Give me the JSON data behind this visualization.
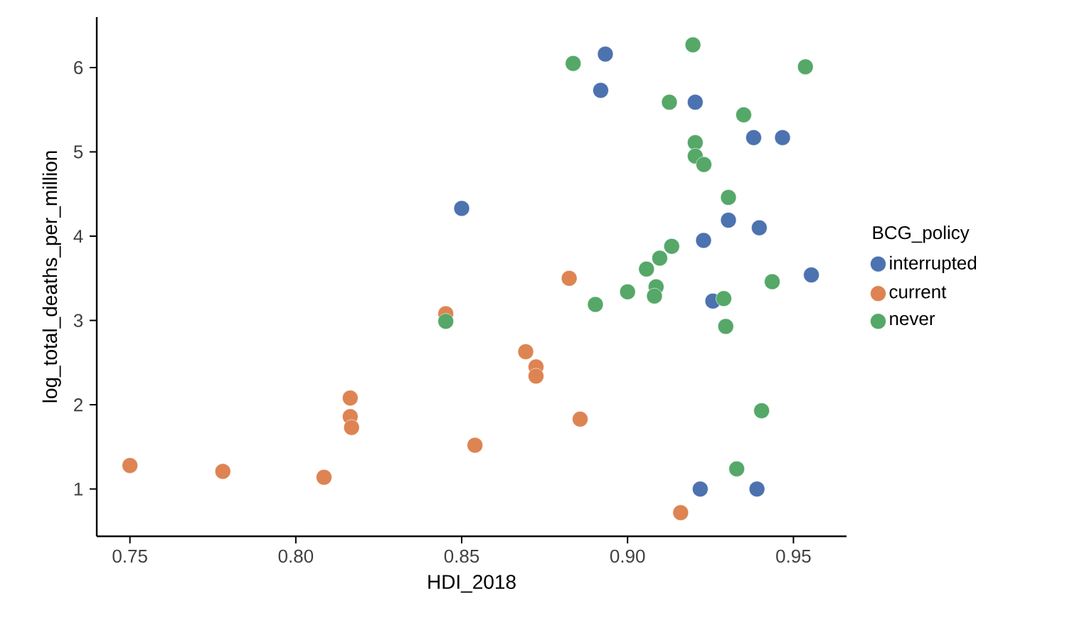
{
  "chart_data": {
    "type": "scatter",
    "xlabel": "HDI_2018",
    "ylabel": "log_total_deaths_per_million",
    "legend_title": "BCG_policy",
    "legend": "right",
    "marker": "circle",
    "xlim": [
      0.74,
      0.966
    ],
    "ylim": [
      0.44,
      6.6
    ],
    "xticks": [
      {
        "value": 0.75,
        "label": "0.75"
      },
      {
        "value": 0.8,
        "label": "0.80"
      },
      {
        "value": 0.85,
        "label": "0.85"
      },
      {
        "value": 0.9,
        "label": "0.90"
      },
      {
        "value": 0.95,
        "label": "0.95"
      }
    ],
    "yticks": [
      1,
      2,
      3,
      4,
      5,
      6
    ],
    "series": [
      {
        "name": "interrupted",
        "color": "#4c72b0",
        "x": [
          0.85,
          0.8933,
          0.8919,
          0.9204,
          0.938,
          0.9467,
          0.9304,
          0.9397,
          0.9229,
          0.9554,
          0.9257,
          0.9219,
          0.939
        ],
        "values": [
          4.33,
          6.16,
          5.73,
          5.59,
          5.17,
          5.17,
          4.19,
          4.1,
          3.95,
          3.54,
          3.23,
          1.0,
          1.0
        ]
      },
      {
        "name": "current",
        "color": "#dd8452",
        "x": [
          0.75,
          0.778,
          0.8085,
          0.8164,
          0.8164,
          0.8168,
          0.8452,
          0.854,
          0.8824,
          0.8693,
          0.8724,
          0.8724,
          0.8857,
          0.916
        ],
        "values": [
          1.28,
          1.21,
          1.14,
          2.08,
          1.86,
          1.73,
          3.08,
          1.52,
          3.5,
          2.63,
          2.45,
          2.34,
          1.83,
          0.72
        ]
      },
      {
        "name": "never",
        "color": "#55a868",
        "x": [
          0.8452,
          0.8836,
          0.9197,
          0.9536,
          0.9126,
          0.935,
          0.9204,
          0.9204,
          0.923,
          0.9304,
          0.9133,
          0.9097,
          0.9057,
          0.9436,
          0.9,
          0.9086,
          0.9081,
          0.929,
          0.8903,
          0.9296,
          0.9404,
          0.9329
        ],
        "values": [
          2.99,
          6.05,
          6.27,
          6.01,
          5.59,
          5.44,
          5.11,
          4.95,
          4.85,
          4.46,
          3.88,
          3.74,
          3.61,
          3.46,
          3.34,
          3.4,
          3.29,
          3.26,
          3.19,
          2.93,
          1.93,
          1.24
        ]
      }
    ]
  }
}
